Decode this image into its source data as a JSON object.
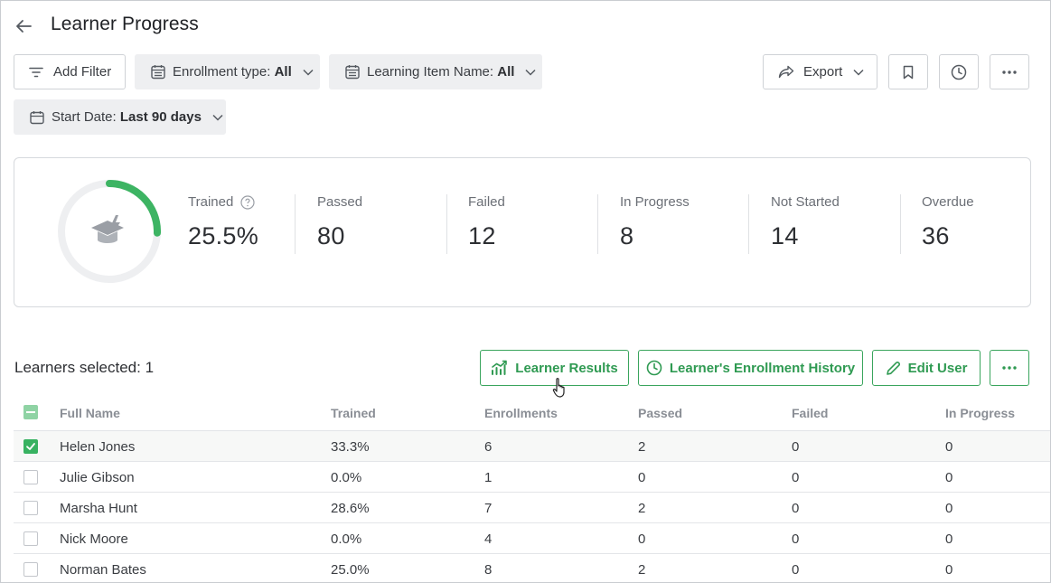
{
  "header": {
    "title": "Learner Progress"
  },
  "filters": {
    "add_filter": "Add Filter",
    "enrollment_label": "Enrollment type:",
    "enrollment_value": "All",
    "learning_item_label": "Learning Item Name:",
    "learning_item_value": "All",
    "start_date_label": "Start Date:",
    "start_date_value": "Last 90 days"
  },
  "toolbar": {
    "export_label": "Export"
  },
  "stats": {
    "trained_fraction": 0.255,
    "items": [
      {
        "label": "Trained",
        "value": "25.5%"
      },
      {
        "label": "Passed",
        "value": "80"
      },
      {
        "label": "Failed",
        "value": "12"
      },
      {
        "label": "In Progress",
        "value": "8"
      },
      {
        "label": "Not Started",
        "value": "14"
      },
      {
        "label": "Overdue",
        "value": "36"
      }
    ],
    "accent_color": "#3db463"
  },
  "selection": {
    "text": "Learners selected: 1",
    "learner_results": "Learner Results",
    "enrollment_history": "Learner's Enrollment History",
    "edit_user": "Edit User"
  },
  "table": {
    "columns": [
      "Full Name",
      "Trained",
      "Enrollments",
      "Passed",
      "Failed",
      "In Progress"
    ],
    "rows": [
      {
        "selected": true,
        "cells": [
          "Helen Jones",
          "33.3%",
          "6",
          "2",
          "0",
          "0"
        ]
      },
      {
        "selected": false,
        "cells": [
          "Julie Gibson",
          "0.0%",
          "1",
          "0",
          "0",
          "0"
        ]
      },
      {
        "selected": false,
        "cells": [
          "Marsha Hunt",
          "28.6%",
          "7",
          "2",
          "0",
          "0"
        ]
      },
      {
        "selected": false,
        "cells": [
          "Nick Moore",
          "0.0%",
          "4",
          "0",
          "0",
          "0"
        ]
      },
      {
        "selected": false,
        "cells": [
          "Norman Bates",
          "25.0%",
          "8",
          "2",
          "0",
          "0"
        ]
      }
    ]
  }
}
